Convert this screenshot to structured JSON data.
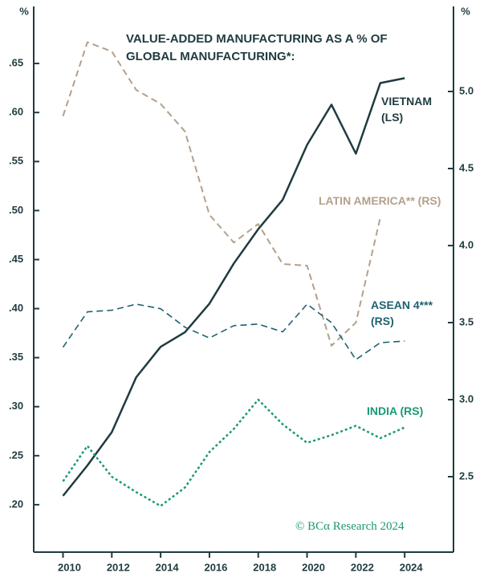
{
  "chart_data": {
    "type": "line",
    "title": "VALUE-ADDED MANUFACTURING AS A % OF GLOBAL MANUFACTURING*:",
    "ylabel": "%",
    "y2label": "%",
    "source": "© BCα Research 2024",
    "x": [
      2010,
      2011,
      2012,
      2013,
      2014,
      2015,
      2016,
      2017,
      2018,
      2019,
      2020,
      2021,
      2022,
      2023,
      2024
    ],
    "xlim": [
      2008.8,
      2026
    ],
    "xticks": [
      2010,
      2012,
      2014,
      2016,
      2018,
      2020,
      2022,
      2024
    ],
    "ylim": [
      0.15,
      0.7
    ],
    "yticks": [
      {
        "value": 0.2,
        "label": ".20"
      },
      {
        "value": 0.25,
        "label": ".25"
      },
      {
        "value": 0.3,
        "label": ".30"
      },
      {
        "value": 0.35,
        "label": ".35"
      },
      {
        "value": 0.4,
        "label": ".40"
      },
      {
        "value": 0.45,
        "label": ".45"
      },
      {
        "value": 0.5,
        "label": ".50"
      },
      {
        "value": 0.55,
        "label": ".55"
      },
      {
        "value": 0.6,
        "label": ".60"
      },
      {
        "value": 0.65,
        "label": ".65"
      }
    ],
    "y2lim": [
      2.0,
      5.5
    ],
    "y2ticks": [
      2.5,
      {
        "value": 3,
        "label": "3.0"
      },
      3.5,
      {
        "value": 4,
        "label": "4.0"
      },
      4.5,
      {
        "value": 5,
        "label": "5.0"
      }
    ],
    "series": [
      {
        "name": "VIETNAM (LS)",
        "color": "#1f3b3f",
        "axis": "y",
        "values": [
          0.209,
          0.24,
          0.274,
          0.33,
          0.361,
          0.376,
          0.405,
          0.446,
          0.481,
          0.511,
          0.567,
          0.608,
          0.558,
          0.63,
          0.635
        ]
      },
      {
        "name": "LATIN AMERICA** (RS)",
        "color": "#b3a08c",
        "axis": "y2",
        "values": [
          4.84,
          5.32,
          5.26,
          5.01,
          4.92,
          4.74,
          4.2,
          4.02,
          4.14,
          3.88,
          3.87,
          3.35,
          3.5,
          4.18,
          null
        ]
      },
      {
        "name": "ASEAN 4*** (RS)",
        "color": "#1f6170",
        "axis": "y2",
        "values": [
          3.34,
          3.57,
          3.58,
          3.62,
          3.59,
          3.47,
          3.4,
          3.48,
          3.49,
          3.44,
          3.62,
          3.5,
          3.26,
          3.37,
          3.38
        ]
      },
      {
        "name": "INDIA (RS)",
        "color": "#1a9a74",
        "axis": "y2",
        "values": [
          2.47,
          2.7,
          2.5,
          2.4,
          2.31,
          2.43,
          2.66,
          2.81,
          3.0,
          2.84,
          2.72,
          2.77,
          2.83,
          2.75,
          2.82
        ]
      }
    ]
  }
}
